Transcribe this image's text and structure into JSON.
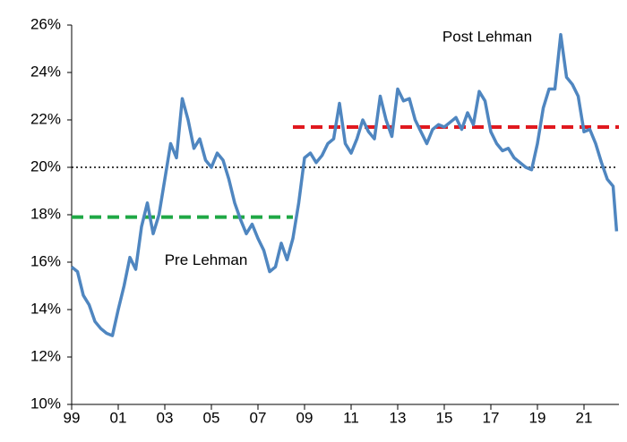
{
  "chart_data": {
    "type": "line",
    "x": [
      1999.0,
      1999.25,
      1999.5,
      1999.75,
      2000.0,
      2000.25,
      2000.5,
      2000.75,
      2001.0,
      2001.25,
      2001.5,
      2001.75,
      2002.0,
      2002.25,
      2002.5,
      2002.75,
      2003.0,
      2003.25,
      2003.5,
      2003.75,
      2004.0,
      2004.25,
      2004.5,
      2004.75,
      2005.0,
      2005.25,
      2005.5,
      2005.75,
      2006.0,
      2006.25,
      2006.5,
      2006.75,
      2007.0,
      2007.25,
      2007.5,
      2007.75,
      2008.0,
      2008.25,
      2008.5,
      2008.75,
      2009.0,
      2009.25,
      2009.5,
      2009.75,
      2010.0,
      2010.25,
      2010.5,
      2010.75,
      2011.0,
      2011.25,
      2011.5,
      2011.75,
      2012.0,
      2012.25,
      2012.5,
      2012.75,
      2013.0,
      2013.25,
      2013.5,
      2013.75,
      2014.0,
      2014.25,
      2014.5,
      2014.75,
      2015.0,
      2015.25,
      2015.5,
      2015.75,
      2016.0,
      2016.25,
      2016.5,
      2016.75,
      2017.0,
      2017.25,
      2017.5,
      2017.75,
      2018.0,
      2018.25,
      2018.5,
      2018.75,
      2019.0,
      2019.25,
      2019.5,
      2019.75,
      2020.0,
      2020.25,
      2020.5,
      2020.75,
      2021.0,
      2021.25,
      2021.5,
      2021.75,
      2022.0,
      2022.25,
      2022.4
    ],
    "values": [
      15.8,
      15.6,
      14.6,
      14.2,
      13.5,
      13.2,
      13.0,
      12.9,
      14.0,
      15.0,
      16.2,
      15.7,
      17.5,
      18.5,
      17.2,
      18.0,
      19.5,
      21.0,
      20.4,
      22.9,
      22.0,
      20.8,
      21.2,
      20.3,
      20.0,
      20.6,
      20.3,
      19.5,
      18.5,
      17.8,
      17.2,
      17.6,
      17.0,
      16.5,
      15.6,
      15.8,
      16.8,
      16.1,
      17.0,
      18.5,
      20.4,
      20.6,
      20.2,
      20.5,
      21.0,
      21.2,
      22.7,
      21.0,
      20.6,
      21.2,
      22.0,
      21.5,
      21.2,
      23.0,
      22.0,
      21.3,
      23.3,
      22.8,
      22.9,
      22.0,
      21.5,
      21.0,
      21.6,
      21.8,
      21.7,
      21.9,
      22.1,
      21.6,
      22.3,
      21.8,
      23.2,
      22.8,
      21.5,
      21.0,
      20.7,
      20.8,
      20.4,
      20.2,
      20.0,
      19.9,
      21.0,
      22.5,
      23.3,
      23.3,
      25.6,
      23.8,
      23.5,
      23.0,
      21.5,
      21.6,
      21.0,
      20.2,
      19.5,
      19.2,
      17.3
    ],
    "color": "#4f86c0",
    "xlim": [
      1999,
      2022.5
    ],
    "xticks": [
      {
        "value": 1999,
        "label": "99"
      },
      {
        "value": 2001,
        "label": "01"
      },
      {
        "value": 2003,
        "label": "03"
      },
      {
        "value": 2005,
        "label": "05"
      },
      {
        "value": 2007,
        "label": "07"
      },
      {
        "value": 2009,
        "label": "09"
      },
      {
        "value": 2011,
        "label": "11"
      },
      {
        "value": 2013,
        "label": "13"
      },
      {
        "value": 2015,
        "label": "15"
      },
      {
        "value": 2017,
        "label": "17"
      },
      {
        "value": 2019,
        "label": "19"
      },
      {
        "value": 2021,
        "label": "21"
      }
    ],
    "ylim": [
      10,
      26
    ],
    "yticks": [
      {
        "value": 10,
        "label": "10%"
      },
      {
        "value": 12,
        "label": "12%"
      },
      {
        "value": 14,
        "label": "14%"
      },
      {
        "value": 16,
        "label": "16%"
      },
      {
        "value": 18,
        "label": "18%"
      },
      {
        "value": 20,
        "label": "20%"
      },
      {
        "value": 22,
        "label": "22%"
      },
      {
        "value": 24,
        "label": "24%"
      },
      {
        "value": 26,
        "label": "26%"
      }
    ],
    "reference_lines": [
      {
        "value": 20,
        "x": [
          1999,
          2022.4
        ],
        "color": "#000000",
        "style": "dotted"
      },
      {
        "value": 17.9,
        "x": [
          1999,
          2008.5
        ],
        "color": "#1fa845",
        "style": "dashed",
        "label": "Pre Lehman"
      },
      {
        "value": 21.7,
        "x": [
          2008.5,
          2022.5
        ],
        "color": "#e0191f",
        "style": "dashed",
        "label": "Post Lehman"
      }
    ]
  }
}
